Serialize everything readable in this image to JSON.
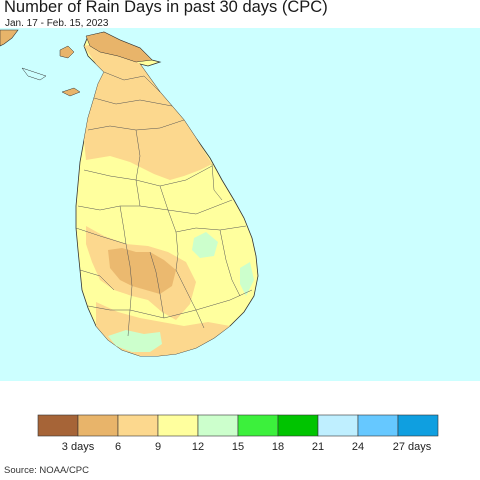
{
  "header": {
    "title": "Number of Rain Days in past 30 days (CPC)",
    "subtitle": "Jan. 17 - Feb. 15, 2023"
  },
  "map": {
    "region": "Sri Lanka",
    "sea_color": "#ccffff",
    "land_outline_color": "#333333"
  },
  "legend": {
    "bins": [
      {
        "color": "#a66437",
        "range": "0-3"
      },
      {
        "color": "#e8b46a",
        "range": "3-6"
      },
      {
        "color": "#fcd88e",
        "range": "6-9"
      },
      {
        "color": "#ffff9e",
        "range": "9-12"
      },
      {
        "color": "#ccffcc",
        "range": "12-15"
      },
      {
        "color": "#3cf03c",
        "range": "15-18"
      },
      {
        "color": "#00c400",
        "range": "18-21"
      },
      {
        "color": "#bfefff",
        "range": "21-24"
      },
      {
        "color": "#66c8ff",
        "range": "24-27"
      },
      {
        "color": "#0f9fe0",
        "range": "27+"
      }
    ],
    "labels": [
      "3 days",
      "6",
      "9",
      "12",
      "15",
      "18",
      "21",
      "24",
      "27 days"
    ]
  },
  "footer": {
    "source": "Source: NOAA/CPC"
  }
}
